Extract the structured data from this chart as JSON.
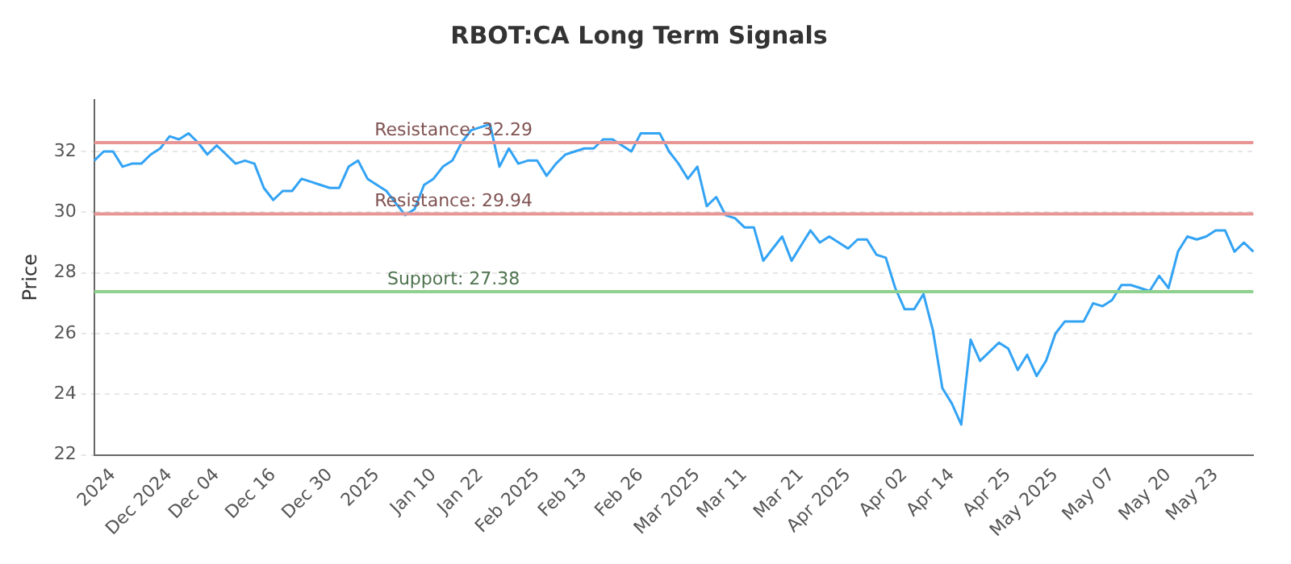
{
  "chart_data": {
    "type": "line",
    "title": "RBOT:CA Long Term Signals",
    "ylabel": "Price",
    "categories": [
      null,
      null,
      "2024",
      null,
      null,
      null,
      null,
      null,
      "Dec 2024",
      null,
      null,
      null,
      null,
      "Dec 04",
      null,
      null,
      null,
      null,
      null,
      "Dec 16",
      null,
      null,
      null,
      null,
      null,
      "Dec 30",
      null,
      null,
      null,
      null,
      "2025",
      null,
      null,
      null,
      null,
      null,
      "Jan 10",
      null,
      null,
      null,
      null,
      "Jan 22",
      null,
      null,
      null,
      null,
      null,
      "Feb 2025",
      null,
      null,
      null,
      null,
      "Feb 13",
      null,
      null,
      null,
      null,
      null,
      "Feb 26",
      null,
      null,
      null,
      null,
      null,
      "Mar 2025",
      null,
      null,
      null,
      null,
      "Mar 11",
      null,
      null,
      null,
      null,
      null,
      "Mar 21",
      null,
      null,
      null,
      null,
      "Apr 2025",
      null,
      null,
      null,
      null,
      null,
      "Apr 02",
      null,
      null,
      null,
      null,
      "Apr 14",
      null,
      null,
      null,
      null,
      null,
      "Apr 25",
      null,
      null,
      null,
      null,
      "May 2025",
      null,
      null,
      null,
      null,
      null,
      "May 07",
      null,
      null,
      null,
      null,
      null,
      "May 20",
      null,
      null,
      null,
      null,
      "May 23",
      null,
      null,
      null,
      null
    ],
    "series": [
      {
        "color": "#33a3f4",
        "values": [
          31.7,
          32.0,
          32.0,
          31.5,
          31.6,
          31.6,
          31.9,
          32.1,
          32.5,
          32.4,
          32.6,
          32.3,
          31.9,
          32.2,
          31.9,
          31.6,
          31.7,
          31.6,
          30.8,
          30.4,
          30.7,
          30.7,
          31.1,
          31.0,
          30.9,
          30.8,
          30.8,
          31.5,
          31.7,
          31.1,
          30.9,
          30.7,
          30.3,
          29.9,
          30.1,
          30.9,
          31.1,
          31.5,
          31.7,
          32.3,
          32.7,
          32.8,
          32.9,
          31.5,
          32.1,
          31.6,
          31.7,
          31.7,
          31.2,
          31.6,
          31.9,
          32.0,
          32.1,
          32.1,
          32.4,
          32.4,
          32.2,
          32.0,
          32.6,
          32.6,
          32.6,
          32.0,
          31.6,
          31.1,
          31.5,
          30.2,
          30.5,
          29.9,
          29.8,
          29.5,
          29.5,
          28.4,
          28.8,
          29.2,
          28.4,
          28.9,
          29.4,
          29.0,
          29.2,
          29.0,
          28.8,
          29.1,
          29.1,
          28.6,
          28.5,
          27.5,
          26.8,
          26.8,
          27.3,
          26.1,
          24.2,
          23.7,
          23.0,
          25.8,
          25.1,
          25.4,
          25.7,
          25.5,
          24.8,
          25.3,
          24.6,
          25.1,
          26.0,
          26.4,
          26.4,
          26.4,
          27.0,
          26.9,
          27.1,
          27.6,
          27.6,
          27.5,
          27.4,
          27.9,
          27.5,
          28.7,
          29.2,
          29.1,
          29.2,
          29.4,
          29.4,
          28.7,
          29.0,
          28.7
        ]
      }
    ],
    "ylim": [
      22,
      33.7
    ],
    "yticks": [
      22,
      24,
      26,
      28,
      30,
      32
    ],
    "grid": "y",
    "legend": false,
    "marker": "none",
    "line_style": "solid",
    "ref_lines": [
      {
        "axis": "y",
        "value": 32.29,
        "label": "Resistance: 32.29",
        "color": "#e89595"
      },
      {
        "axis": "y",
        "value": 29.94,
        "label": "Resistance: 29.94",
        "color": "#e89595"
      },
      {
        "axis": "y",
        "value": 27.38,
        "label": "Support: 27.38",
        "color": "#8fd18f"
      }
    ]
  }
}
